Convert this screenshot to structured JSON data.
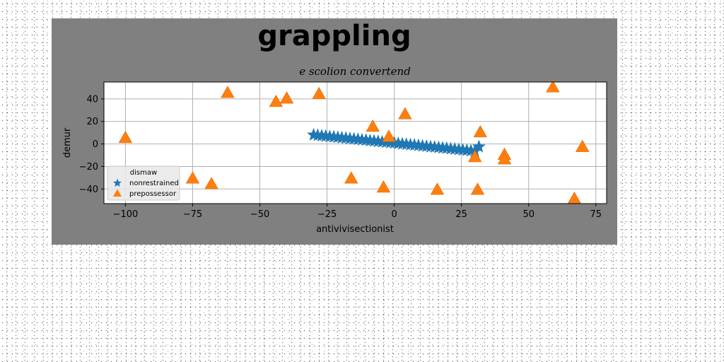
{
  "chart_data": {
    "type": "scatter",
    "title": "grappling",
    "subtitle": "e scolion convertend",
    "xlabel": "antivivisectionist",
    "ylabel": "demur",
    "xlim": [
      -108,
      79
    ],
    "ylim": [
      -53,
      55
    ],
    "xticks": [
      -100,
      -75,
      -50,
      -25,
      0,
      25,
      50,
      75
    ],
    "yticks": [
      -40,
      -20,
      0,
      20,
      40
    ],
    "grid": true,
    "legend": {
      "title": "dismaw",
      "placement": "lower-left"
    },
    "series": [
      {
        "name": "nonrestrained",
        "marker": "star",
        "color": "#1f77b4",
        "x": [
          -30,
          -28.5,
          -27,
          -25.5,
          -24,
          -22.5,
          -21,
          -19.5,
          -18,
          -16.5,
          -15,
          -13.5,
          -12,
          -10.5,
          -9,
          -7.5,
          -6,
          -4.5,
          -3,
          -1.5,
          0,
          1.5,
          3,
          4.5,
          6,
          7.5,
          9,
          10.5,
          12,
          13.5,
          15,
          16.5,
          18,
          19.5,
          21,
          22.5,
          24,
          25.5,
          27,
          28.5,
          30,
          31.5
        ],
        "y": [
          8,
          7.6,
          7.2,
          6.9,
          6.5,
          6.2,
          5.8,
          5.4,
          5.1,
          4.7,
          4.4,
          4.0,
          3.6,
          3.3,
          2.9,
          2.6,
          2.2,
          1.8,
          1.5,
          1.1,
          0.8,
          0.4,
          0,
          -0.3,
          -0.7,
          -1.0,
          -1.4,
          -1.8,
          -2.1,
          -2.5,
          -2.8,
          -3.2,
          -3.6,
          -3.9,
          -4.3,
          -4.6,
          -5.0,
          -5.4,
          -5.7,
          -6.1,
          -6.4,
          -2.5
        ]
      },
      {
        "name": "prepossessor",
        "marker": "triangle",
        "color": "#ff7f0e",
        "x": [
          -100,
          -62,
          -44,
          -40,
          -28,
          -75,
          -68,
          -16,
          -8,
          -4,
          -2,
          4,
          16,
          30,
          31,
          32,
          41,
          41,
          59,
          67,
          70
        ],
        "y": [
          5,
          45,
          37,
          40,
          44,
          -31,
          -36,
          -31,
          15,
          -39,
          6,
          26,
          -41,
          -12,
          -41,
          10,
          -10,
          -14,
          50,
          -49,
          -3
        ]
      }
    ]
  }
}
